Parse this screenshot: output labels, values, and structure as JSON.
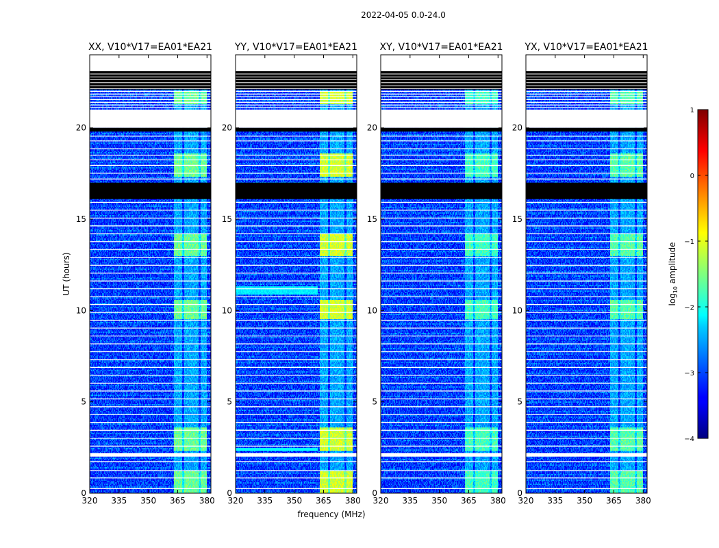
{
  "chart_data": {
    "type": "heatmap",
    "title": "2022-04-05 0.0-24.0",
    "xlabel": "frequency (MHz)",
    "ylabel": "UT (hours)",
    "xlim": [
      320,
      382
    ],
    "ylim": [
      0,
      24
    ],
    "xticks": [
      320,
      335,
      350,
      365,
      380
    ],
    "yticks": [
      0,
      5,
      10,
      15,
      20
    ],
    "colorbar": {
      "label": "log10 amplitude",
      "label_main": "log",
      "label_sub": "10",
      "label_rest": " amplitude",
      "range": [
        -4,
        1
      ],
      "ticks": [
        -4,
        -3,
        -2,
        -1,
        0,
        1
      ],
      "colormap": "jet"
    },
    "panels": [
      {
        "title": "XX, V10*V17=EA01*EA21",
        "rfi_level": -1.6
      },
      {
        "title": "YY, V10*V17=EA01*EA21",
        "rfi_level": -1.1
      },
      {
        "title": "XY, V10*V17=EA01*EA21",
        "rfi_level": -1.8
      },
      {
        "title": "YX, V10*V17=EA01*EA21",
        "rfi_level": -1.7
      }
    ],
    "background_level": -3.1,
    "rfi_band_mhz": [
      363,
      380
    ],
    "rfi_bright_hours": [
      [
        0,
        1.2
      ],
      [
        2.3,
        3.6
      ],
      [
        9.5,
        10.6
      ],
      [
        13.0,
        14.2
      ],
      [
        17.3,
        18.6
      ],
      [
        21.3,
        22.0
      ]
    ],
    "flagged_black_hours": [
      [
        16.1,
        17.0
      ],
      [
        19.8,
        20.0
      ],
      [
        22.1,
        23.1
      ]
    ],
    "flagged_white_hours": [
      [
        2.0,
        2.2
      ],
      [
        20.0,
        21.0
      ],
      [
        23.1,
        24.0
      ]
    ]
  },
  "colors": {
    "flagged_white": "#ffffff",
    "flagged_black": "#000000"
  }
}
